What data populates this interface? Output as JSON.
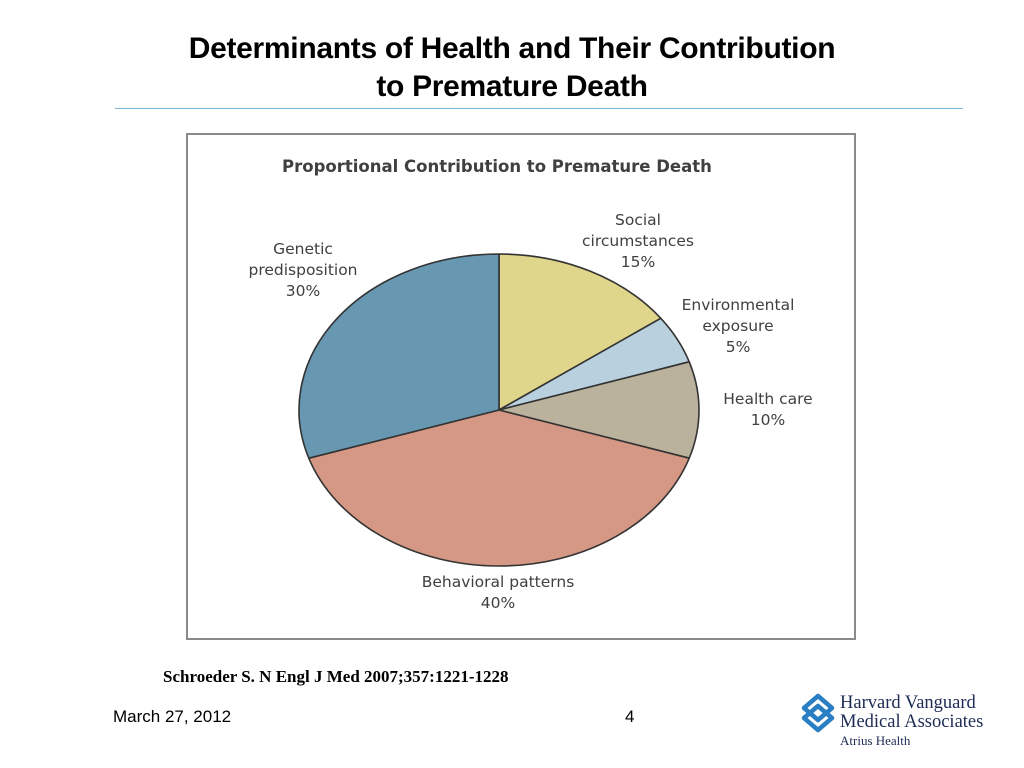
{
  "slide": {
    "title_line1": "Determinants of Health and Their Contribution",
    "title_line2": "to Premature Death",
    "citation": "Schroeder S. N Engl J Med 2007;357:1221-1228",
    "date": "March 27, 2012",
    "page_number": "4"
  },
  "logo": {
    "line1": "Harvard Vanguard",
    "line2": "Medical Associates",
    "line3": "Atrius Health",
    "icon": "interlocking-diamond-logo-icon",
    "color": "#2a7fc4"
  },
  "chart_data": {
    "type": "pie",
    "title": "Proportional Contribution to Premature Death",
    "slices": [
      {
        "lines": [
          "Social",
          "circumstances",
          "15%"
        ],
        "value": 15,
        "color": "#dfd58b"
      },
      {
        "lines": [
          "Environmental",
          "exposure",
          "5%"
        ],
        "value": 5,
        "color": "#b9d1df"
      },
      {
        "lines": [
          "Health care",
          "10%"
        ],
        "value": 10,
        "color": "#bbb29d"
      },
      {
        "lines": [
          "Behavioral patterns",
          "40%"
        ],
        "value": 40,
        "color": "#d49885"
      },
      {
        "lines": [
          "Genetic",
          "predisposition",
          "30%"
        ],
        "value": 30,
        "color": "#6898b1"
      }
    ],
    "start": "12 o'clock, clockwise"
  }
}
